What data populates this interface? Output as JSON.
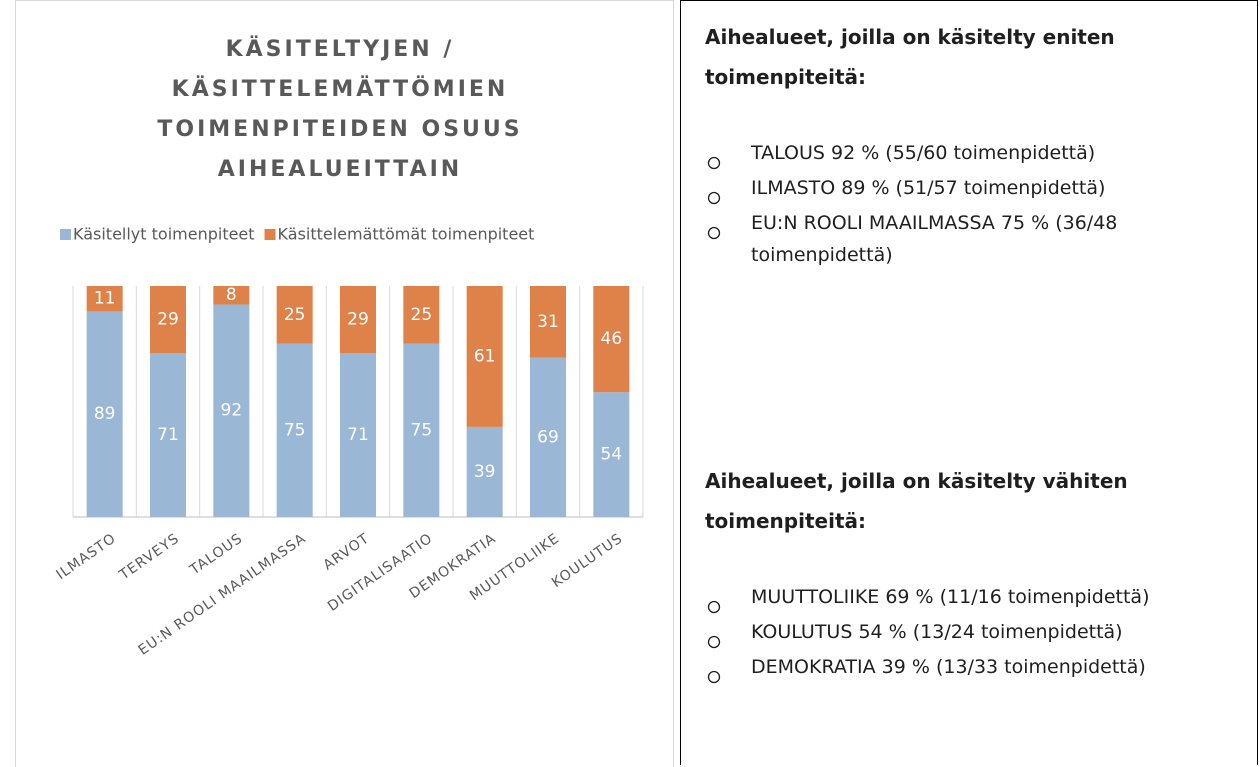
{
  "chart_data": {
    "type": "stacked_bar",
    "title": [
      "KÄSITELTYJEN /",
      "KÄSITTELEMÄTTÖMIEN",
      "TOIMENPITEIDEN OSUUS",
      "AIHEALUEITTAIN"
    ],
    "categories": [
      "ILMASTO",
      "TERVEYS",
      "TALOUS",
      "EU:N ROOLI MAAILMASSA",
      "ARVOT",
      "DIGITALISAATIO",
      "DEMOKRATIA",
      "MUUTTOLIIKE",
      "KOULUTUS"
    ],
    "series": [
      {
        "name": "Käsitellyt toimenpiteet",
        "color": "#9ab7d6",
        "values": [
          89,
          71,
          92,
          75,
          71,
          75,
          39,
          69,
          54
        ]
      },
      {
        "name": "Käsittelemättömät toimenpiteet",
        "color": "#df8249",
        "values": [
          11,
          29,
          8,
          25,
          29,
          25,
          61,
          31,
          46
        ]
      }
    ],
    "ylim": [
      0,
      100
    ],
    "legend": "top"
  },
  "text_box": {
    "sections": [
      {
        "heading": "Aihealueet, joilla on käsitelty eniten toimenpiteitä:",
        "items": [
          "TALOUS 92 % (55/60 toimenpidettä)",
          "ILMASTO 89 % (51/57 toimenpidettä)",
          "EU:N ROOLI MAAILMASSA 75 % (36/48 toimenpidettä)"
        ]
      },
      {
        "heading": "Aihealueet, joilla on käsitelty vähiten toimenpiteitä:",
        "items": [
          "MUUTTOLIIKE 69 % (11/16 toimenpidettä)",
          "KOULUTUS 54 % (13/24 toimenpidettä)",
          "DEMOKRATIA 39 % (13/33 toimenpidettä)"
        ]
      }
    ]
  }
}
